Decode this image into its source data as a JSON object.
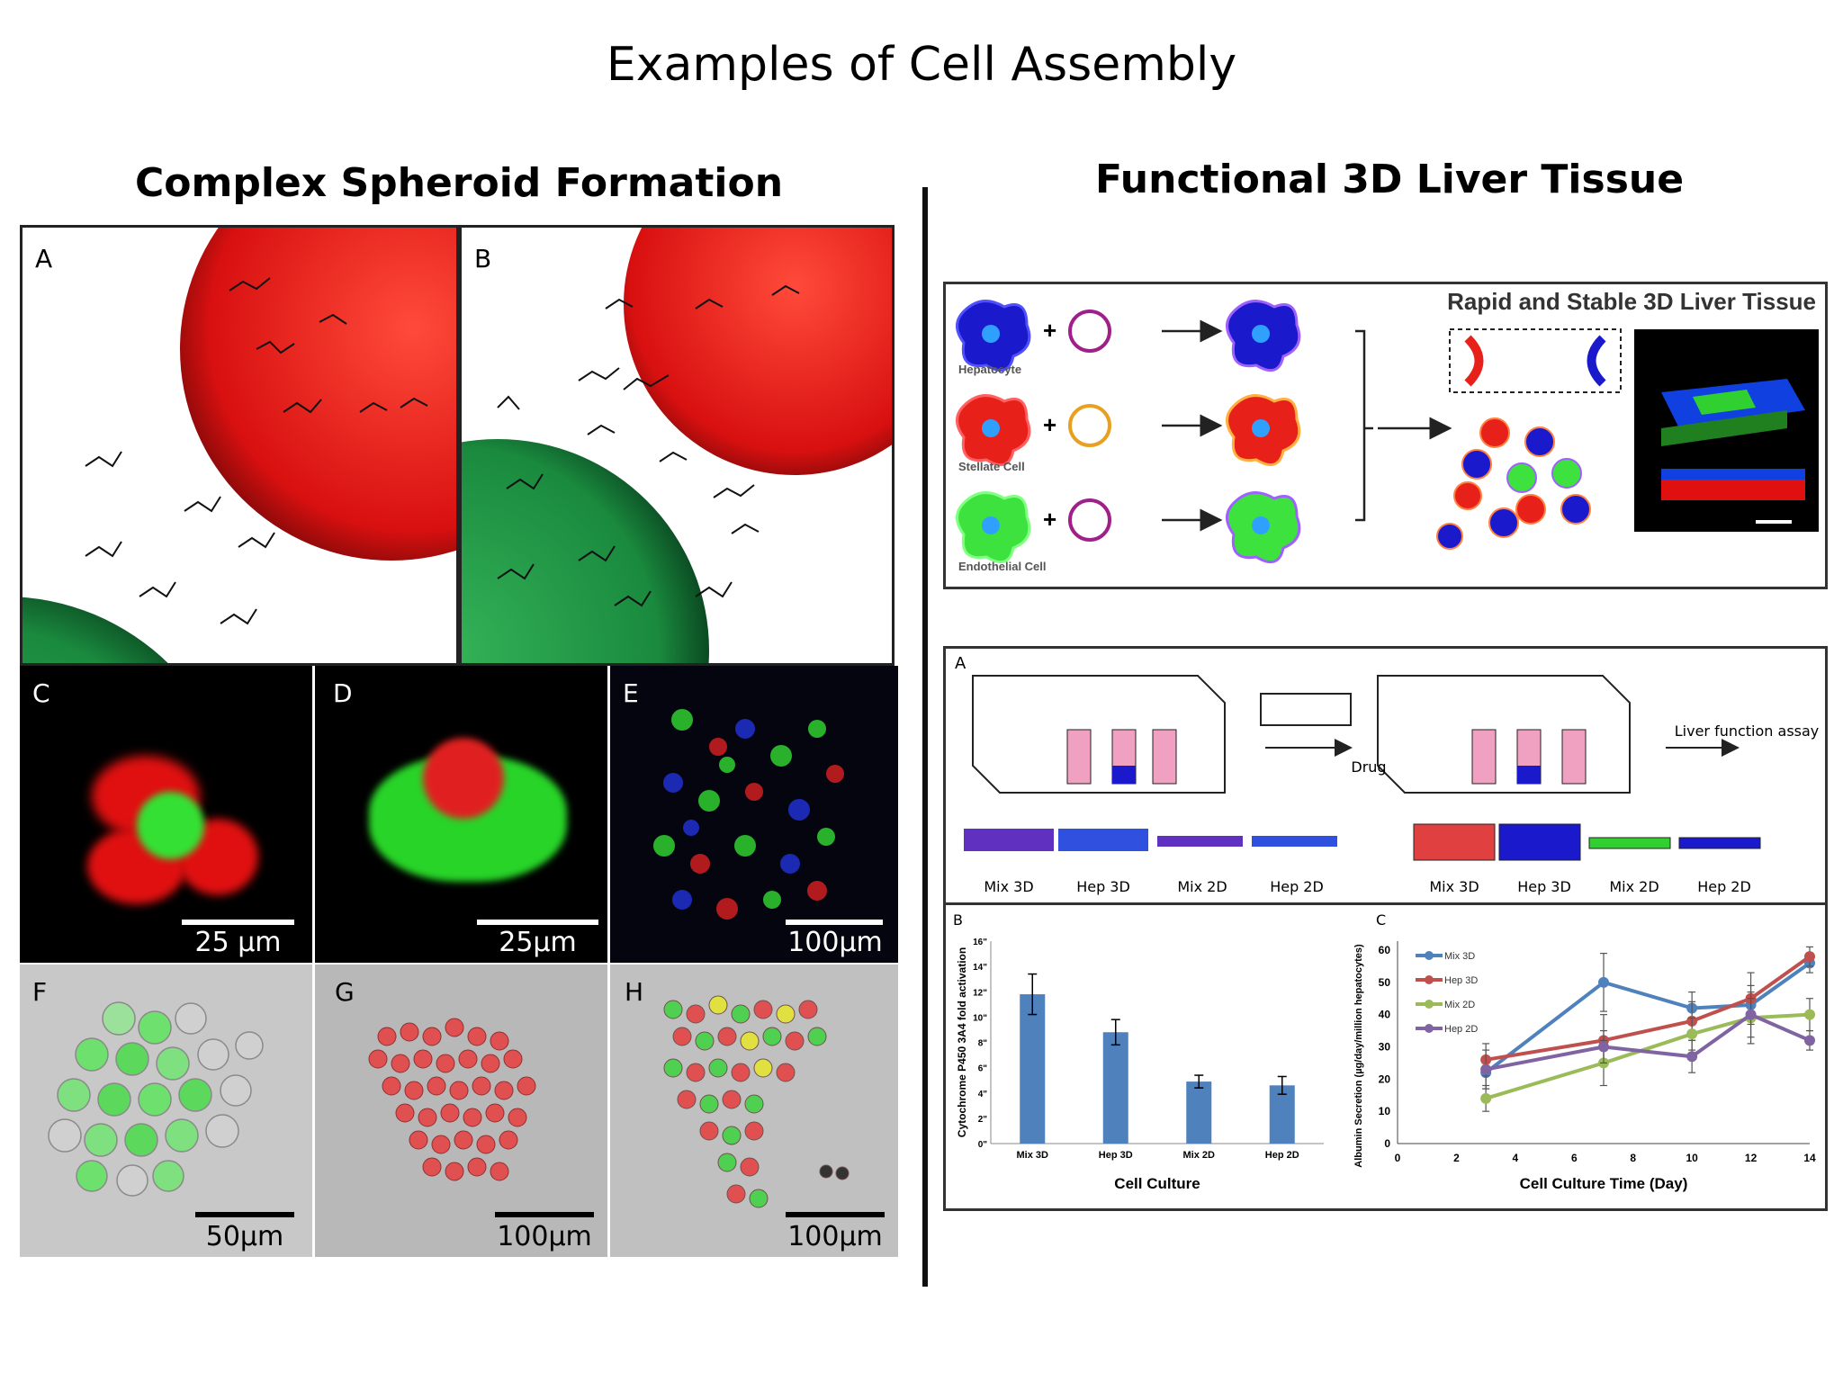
{
  "page_title": "Examples of Cell Assembly",
  "left_heading": "Complex Spheroid Formation",
  "right_heading": "Functional 3D Liver Tissue",
  "panels": {
    "A": "A",
    "B": "B",
    "C": "C",
    "D": "D",
    "E": "E",
    "F": "F",
    "G": "G",
    "H": "H"
  },
  "scale_bars": {
    "C": "25 µm",
    "D": "25µm",
    "E": "100µm",
    "F": "50µm",
    "G": "100µm",
    "H": "100µm"
  },
  "schematic": {
    "title": "Rapid and Stable 3D Liver Tissue",
    "cells": [
      "Hepatocyte",
      "Stellate Cell",
      "Endothelial Cell"
    ],
    "colors": {
      "hepatocyte": "#1a1acc",
      "stellate": "#e8201a",
      "endothelial": "#3ee23e"
    }
  },
  "assay": {
    "label": "A",
    "drug": "Drug",
    "liver_function": "Liver function assay",
    "left_captions": [
      "Mix 3D",
      "Hep 3D",
      "Mix 2D",
      "Hep 2D"
    ],
    "right_captions": [
      "Mix 3D",
      "Hep 3D",
      "Mix 2D",
      "Hep 2D"
    ]
  },
  "chart_data": [
    {
      "type": "bar",
      "label": "B",
      "categories": [
        "Mix 3D",
        "Hep 3D",
        "Mix 2D",
        "Hep 2D"
      ],
      "values": [
        11.8,
        8.8,
        4.9,
        4.6
      ],
      "errors": [
        1.6,
        1.0,
        0.5,
        0.7
      ],
      "ylabel": "Cytochrome P450 3A4 fold activation",
      "xlabel": "Cell Culture",
      "ylim": [
        0,
        16
      ],
      "yticks": [
        "0\"",
        "2\"",
        "4\"",
        "6\"",
        "8\"",
        "10\"",
        "12\"",
        "14\"",
        "16\""
      ],
      "color": "#4f81bd"
    },
    {
      "type": "line",
      "label": "C",
      "x": [
        3,
        7,
        10,
        12,
        14
      ],
      "series": [
        {
          "name": "Mix 3D",
          "values": [
            22,
            50,
            42,
            43,
            56
          ],
          "color": "#4f81bd"
        },
        {
          "name": "Hep 3D",
          "values": [
            26,
            32,
            38,
            45,
            58
          ],
          "color": "#c0504d"
        },
        {
          "name": "Mix 2D",
          "values": [
            14,
            25,
            34,
            39,
            40
          ],
          "color": "#9bbb59"
        },
        {
          "name": "Hep 2D",
          "values": [
            23,
            30,
            27,
            40,
            32
          ],
          "color": "#8064a2"
        }
      ],
      "errors": [
        [
          5,
          9,
          5,
          4,
          3
        ],
        [
          5,
          8,
          6,
          8,
          3
        ],
        [
          4,
          7,
          5,
          6,
          5
        ],
        [
          6,
          5,
          5,
          9,
          3
        ]
      ],
      "ylabel": "Albumin Secretion (µg/day/million hepatocytes)",
      "xlabel": "Cell Culture Time (Day)",
      "xlim": [
        0,
        14
      ],
      "ylim": [
        0,
        60
      ],
      "xticks": [
        0,
        2,
        4,
        6,
        8,
        10,
        12,
        14
      ],
      "yticks": [
        0,
        10,
        20,
        30,
        40,
        50,
        60
      ],
      "legend": "top-left"
    }
  ]
}
